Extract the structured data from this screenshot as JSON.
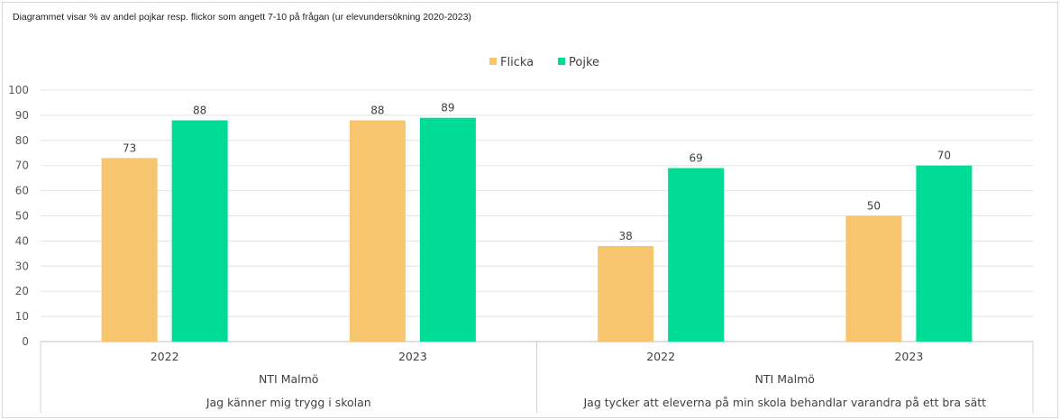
{
  "caption": "Diagrammet visar % av andel pojkar resp. flickor som angett 7-10 på frågan (ur elevundersökning 2020-2023)",
  "chart_data": {
    "type": "bar",
    "ylim": [
      0,
      100
    ],
    "y_ticks": [
      0,
      10,
      20,
      30,
      40,
      50,
      60,
      70,
      80,
      90,
      100
    ],
    "grid": true,
    "legend_position": "top-center",
    "categories": [
      "2022",
      "2023",
      "2022",
      "2023"
    ],
    "category_level2": [
      "NTI Malmö",
      "NTI Malmö"
    ],
    "category_level3": [
      "Jag känner mig trygg i skolan",
      "Jag tycker att eleverna på min skola behandlar varandra på ett bra sätt"
    ],
    "series": [
      {
        "name": "Flicka",
        "color": "#F7C56E",
        "values": [
          73,
          88,
          38,
          50
        ]
      },
      {
        "name": "Pojke",
        "color": "#00DC96",
        "values": [
          88,
          89,
          69,
          70
        ]
      }
    ]
  }
}
